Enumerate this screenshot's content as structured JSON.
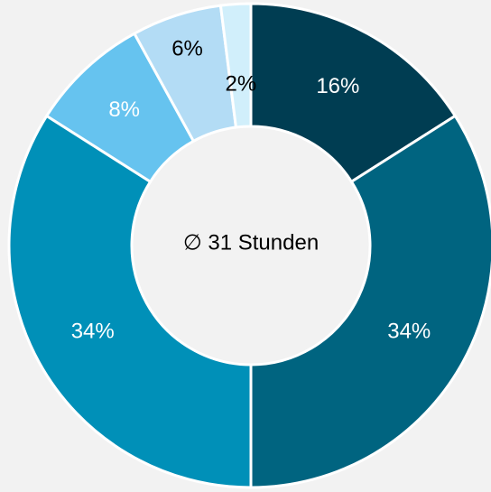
{
  "chart_data": {
    "type": "donut",
    "center_label": "∅ 31 Stunden",
    "values": [
      16,
      34,
      34,
      8,
      6,
      2
    ],
    "value_labels": [
      "16%",
      "34%",
      "34%",
      "8%",
      "6%",
      "2%"
    ],
    "colors": [
      "#003d52",
      "#006480",
      "#0090b8",
      "#66c3ef",
      "#b3dcf5",
      "#d1effb"
    ],
    "label_colors": [
      "#ffffff",
      "#ffffff",
      "#ffffff",
      "#ffffff",
      "#000000",
      "#000000"
    ]
  }
}
